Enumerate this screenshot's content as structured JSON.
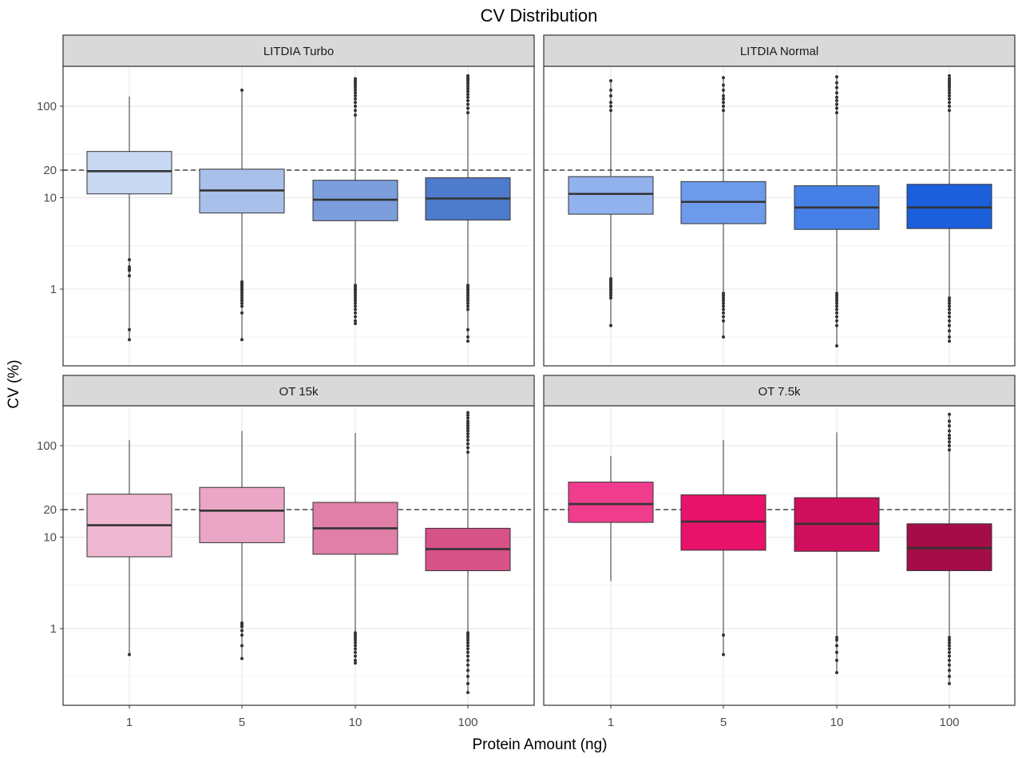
{
  "chart_data": {
    "type": "box",
    "title": "CV Distribution",
    "xlabel": "Protein Amount (ng)",
    "ylabel": "CV (%)",
    "y_scale": "log10",
    "ylim": [
      0.2,
      300
    ],
    "y_ticks": [
      1,
      10,
      20,
      100
    ],
    "y_tick_labels": [
      "1",
      "10",
      "20",
      "100"
    ],
    "reference_line": 20,
    "grid": true,
    "categories": [
      "1",
      "5",
      "10",
      "100"
    ],
    "panels": [
      {
        "name": "LITDIA Turbo",
        "boxes": [
          {
            "category": "1",
            "color": "#c8d7f2",
            "min": 0.28,
            "q1": 11,
            "median": 19.5,
            "q3": 32,
            "max": 128,
            "outliers": [
              2.1,
              1.75,
              1.65,
              1.6,
              1.4,
              0.36,
              0.28
            ]
          },
          {
            "category": "5",
            "color": "#a9c0ea",
            "min": 0.28,
            "q1": 6.8,
            "median": 12,
            "q3": 20.5,
            "max": 150,
            "outliers": [
              1.2,
              1.15,
              1.1,
              1.05,
              1.0,
              0.95,
              0.9,
              0.85,
              0.8,
              0.75,
              0.7,
              0.65,
              0.55,
              150,
              0.28
            ]
          },
          {
            "category": "10",
            "color": "#7c9edc",
            "min": 0.42,
            "q1": 5.6,
            "median": 9.5,
            "q3": 15.5,
            "max": 200,
            "outliers": [
              1.1,
              1.05,
              1.0,
              0.95,
              0.9,
              0.85,
              0.8,
              0.75,
              0.7,
              0.65,
              0.6,
              0.55,
              0.5,
              0.45,
              0.42,
              80,
              90,
              100,
              110,
              120,
              130,
              140,
              150,
              160,
              170,
              180,
              190,
              200
            ]
          },
          {
            "category": "100",
            "color": "#4f7bcc",
            "min": 0.27,
            "q1": 5.7,
            "median": 9.8,
            "q3": 16.5,
            "max": 215,
            "outliers": [
              1.1,
              1.05,
              1.0,
              0.95,
              0.9,
              0.85,
              0.8,
              0.75,
              0.7,
              0.65,
              0.6,
              0.36,
              0.3,
              0.27,
              85,
              95,
              105,
              115,
              125,
              135,
              145,
              155,
              165,
              175,
              185,
              195,
              205,
              215
            ]
          }
        ]
      },
      {
        "name": "LITDIA Normal",
        "boxes": [
          {
            "category": "1",
            "color": "#91b2ed",
            "min": 0.4,
            "q1": 6.6,
            "median": 11,
            "q3": 17,
            "max": 190,
            "outliers": [
              1.3,
              1.25,
              1.2,
              1.15,
              1.1,
              1.05,
              1.0,
              0.95,
              0.9,
              0.85,
              0.8,
              0.4,
              90,
              100,
              110,
              130,
              150,
              190
            ]
          },
          {
            "category": "5",
            "color": "#6d9bea",
            "min": 0.3,
            "q1": 5.2,
            "median": 9,
            "q3": 15,
            "max": 205,
            "outliers": [
              0.9,
              0.85,
              0.8,
              0.75,
              0.7,
              0.65,
              0.6,
              0.55,
              0.5,
              0.45,
              0.3,
              90,
              100,
              110,
              120,
              130,
              150,
              170,
              205
            ]
          },
          {
            "category": "10",
            "color": "#4680e6",
            "min": 0.24,
            "q1": 4.5,
            "median": 7.8,
            "q3": 13.5,
            "max": 210,
            "outliers": [
              0.9,
              0.85,
              0.8,
              0.75,
              0.7,
              0.65,
              0.6,
              0.55,
              0.5,
              0.45,
              0.4,
              0.24,
              85,
              95,
              105,
              115,
              125,
              140,
              160,
              180,
              210
            ]
          },
          {
            "category": "100",
            "color": "#1c5fdd",
            "min": 0.27,
            "q1": 4.6,
            "median": 7.8,
            "q3": 14,
            "max": 215,
            "outliers": [
              0.8,
              0.75,
              0.7,
              0.65,
              0.6,
              0.55,
              0.5,
              0.45,
              0.4,
              0.35,
              0.3,
              0.27,
              90,
              100,
              110,
              120,
              130,
              140,
              150,
              160,
              170,
              180,
              190,
              200,
              215
            ]
          }
        ]
      },
      {
        "name": "OT 15k",
        "boxes": [
          {
            "category": "1",
            "color": "#f0b8d0",
            "min": 0.52,
            "q1": 6.1,
            "median": 13.5,
            "q3": 29.5,
            "max": 115,
            "outliers": [
              0.52
            ]
          },
          {
            "category": "5",
            "color": "#eaa6c5",
            "min": 0.47,
            "q1": 8.7,
            "median": 19.5,
            "q3": 35,
            "max": 145,
            "outliers": [
              1.15,
              1.1,
              1.05,
              0.95,
              0.85,
              0.65,
              0.47
            ]
          },
          {
            "category": "10",
            "color": "#e07fa8",
            "min": 0.42,
            "q1": 6.5,
            "median": 12.5,
            "q3": 24,
            "max": 138,
            "outliers": [
              0.9,
              0.85,
              0.8,
              0.75,
              0.7,
              0.65,
              0.6,
              0.55,
              0.5,
              0.45,
              0.42
            ]
          },
          {
            "category": "100",
            "color": "#d75287",
            "min": 0.2,
            "q1": 4.3,
            "median": 7.4,
            "q3": 12.5,
            "max": 230,
            "outliers": [
              0.9,
              0.85,
              0.8,
              0.75,
              0.7,
              0.65,
              0.6,
              0.55,
              0.5,
              0.45,
              0.4,
              0.35,
              0.3,
              0.25,
              0.2,
              85,
              95,
              105,
              115,
              125,
              135,
              145,
              155,
              165,
              175,
              185,
              200,
              215,
              230
            ]
          }
        ]
      },
      {
        "name": "OT 7.5k",
        "boxes": [
          {
            "category": "1",
            "color": "#f03d8e",
            "min": 3.3,
            "q1": 14.5,
            "median": 23,
            "q3": 40,
            "max": 77,
            "outliers": []
          },
          {
            "category": "5",
            "color": "#e8126a",
            "min": 0.52,
            "q1": 7.2,
            "median": 14.8,
            "q3": 29,
            "max": 115,
            "outliers": [
              0.85,
              0.52
            ]
          },
          {
            "category": "10",
            "color": "#cf0f5c",
            "min": 0.33,
            "q1": 7,
            "median": 14,
            "q3": 27,
            "max": 140,
            "outliers": [
              0.8,
              0.75,
              0.65,
              0.55,
              0.45,
              0.33
            ]
          },
          {
            "category": "100",
            "color": "#a50d48",
            "min": 0.25,
            "q1": 4.3,
            "median": 7.6,
            "q3": 14,
            "max": 220,
            "outliers": [
              0.8,
              0.75,
              0.7,
              0.65,
              0.6,
              0.55,
              0.5,
              0.45,
              0.4,
              0.35,
              0.3,
              0.25,
              90,
              100,
              110,
              120,
              130,
              145,
              165,
              185,
              220
            ]
          }
        ]
      }
    ]
  }
}
